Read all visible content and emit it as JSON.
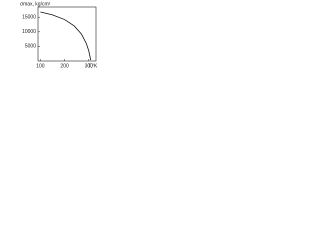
{
  "chart_data": {
    "type": "line",
    "y_label": "σmax, kg/cm²",
    "x_label": "T,°K",
    "x": [
      100,
      150,
      200,
      240,
      270,
      290,
      300,
      308
    ],
    "series": [
      {
        "name": "σmax",
        "color": "#111",
        "values": [
          16800,
          15800,
          14200,
          12000,
          9200,
          6000,
          3500,
          300
        ]
      }
    ],
    "xlim": [
      90,
      330
    ],
    "xticks": [
      100,
      200,
      300
    ],
    "ylim": [
      0,
      18500
    ],
    "yticks": [
      5000,
      10000,
      15000
    ]
  }
}
